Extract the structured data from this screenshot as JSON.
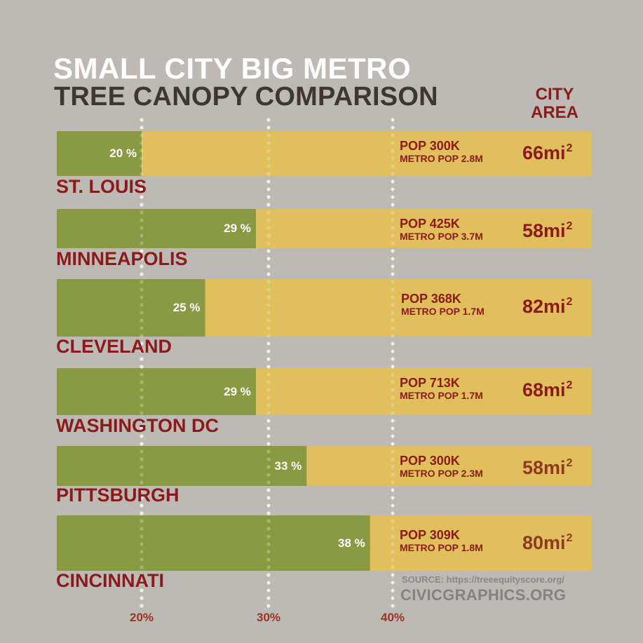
{
  "title": {
    "line1": "SMALL CITY BIG METRO",
    "line2": "TREE CANOPY COMPARISON"
  },
  "area_header": {
    "line1": "CITY",
    "line2": "AREA"
  },
  "colors": {
    "background": "#bdb9b5",
    "canopy_bar": "#8a9a42",
    "remainder_bar": "#e0bf5c",
    "accent_red": "#8b1a1a",
    "accent_brown": "#8e3a22",
    "tick_label": "#9a3322",
    "gridline_dot": "#f2f0ee"
  },
  "chart_data": {
    "type": "bar",
    "orientation": "horizontal",
    "title": "SMALL CITY BIG METRO — TREE CANOPY COMPARISON",
    "xlabel": "",
    "ylabel": "",
    "value_unit": "%",
    "x_ticks": [
      "20%",
      "30%",
      "40%"
    ],
    "x_tick_values": [
      20,
      30,
      40
    ],
    "grid": "dotted vertical at ticks",
    "categories": [
      "ST. LOUIS",
      "MINNEAPOLIS",
      "CLEVELAND",
      "WASHINGTON DC",
      "PITTSBURGH",
      "CINCINNATI"
    ],
    "series": [
      {
        "name": "Tree canopy",
        "values": [
          20,
          29,
          25,
          29,
          33,
          38
        ]
      }
    ],
    "rows": [
      {
        "city": "ST. LOUIS",
        "canopy": 20,
        "canopy_label": "20 %",
        "pop": "POP 300K",
        "metro_pop": "METRO POP 2.8M",
        "area_num": "66mi",
        "area_sup": "2",
        "area_color": "#8b1a1a"
      },
      {
        "city": "MINNEAPOLIS",
        "canopy": 29,
        "canopy_label": "29 %",
        "pop": "POP 425K",
        "metro_pop": "METRO POP 3.7M",
        "area_num": "58mi",
        "area_sup": "2",
        "area_color": "#8b1a1a"
      },
      {
        "city": "CLEVELAND",
        "canopy": 25,
        "canopy_label": "25 %",
        "pop": "POP 368K",
        "metro_pop": "METRO POP 1.7M",
        "area_num": "82mi",
        "area_sup": "2",
        "area_color": "#8b1a1a"
      },
      {
        "city": "WASHINGTON DC",
        "canopy": 29,
        "canopy_label": "29 %",
        "pop": "POP 713K",
        "metro_pop": "METRO POP 1.7M",
        "area_num": "68mi",
        "area_sup": "2",
        "area_color": "#8b1a1a"
      },
      {
        "city": "PITTSBURGH",
        "canopy": 33,
        "canopy_label": "33 %",
        "pop": "POP 300K",
        "metro_pop": "METRO POP 2.3M",
        "area_num": "58mi",
        "area_sup": "2",
        "area_color": "#8e3a22"
      },
      {
        "city": "CINCINNATI",
        "canopy": 38,
        "canopy_label": "38 %",
        "pop": "POP 309K",
        "metro_pop": "METRO POP 1.8M",
        "area_num": "80mi",
        "area_sup": "2",
        "area_color": "#8e3a22"
      }
    ]
  },
  "footer": {
    "source": "SOURCE: https://treeequityscore.org/",
    "brand": "CIVICGRAPHICS.ORG"
  }
}
